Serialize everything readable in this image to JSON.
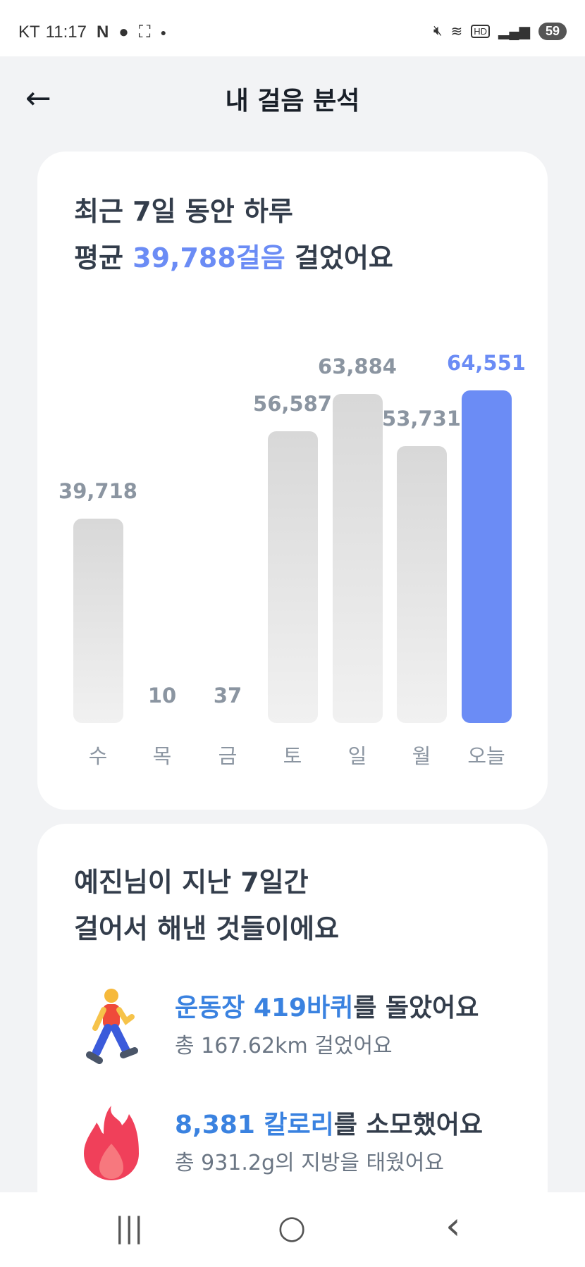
{
  "status_bar": {
    "carrier": "KT",
    "time": "11:17",
    "battery": "59"
  },
  "header": {
    "title": "내 걸음 분석"
  },
  "summary": {
    "line1": "최근 7일 동안 하루",
    "line2_prefix": "평균 ",
    "line2_highlight": "39,788걸음",
    "line2_suffix": " 걸었어요"
  },
  "chart_data": {
    "type": "bar",
    "categories": [
      "수",
      "목",
      "금",
      "토",
      "일",
      "월",
      "오늘"
    ],
    "values": [
      39718,
      10,
      37,
      56587,
      63884,
      53731,
      64551
    ],
    "value_labels": [
      "39,718",
      "10",
      "37",
      "56,587",
      "63,884",
      "53,731",
      "64,551"
    ],
    "highlight_index": 6,
    "colors": {
      "default": "#dcdcdc",
      "highlight": "#6b8cf5"
    }
  },
  "achievements": {
    "title_line1": "예진님이 지난 7일간",
    "title_line2": "걸어서 해낸 것들이에요",
    "items": [
      {
        "icon": "person-walking-icon",
        "highlight": "운동장 419바퀴",
        "rest": "를 돌았어요",
        "sub": "총 167.62km 걸었어요"
      },
      {
        "icon": "fire-icon",
        "highlight": "8,381 칼로리",
        "rest": "를 소모했어요",
        "sub": "총 931.2g의 지방을 태웠어요"
      }
    ]
  },
  "nav": {
    "recent": "|||",
    "home": "○",
    "back": "‹"
  }
}
